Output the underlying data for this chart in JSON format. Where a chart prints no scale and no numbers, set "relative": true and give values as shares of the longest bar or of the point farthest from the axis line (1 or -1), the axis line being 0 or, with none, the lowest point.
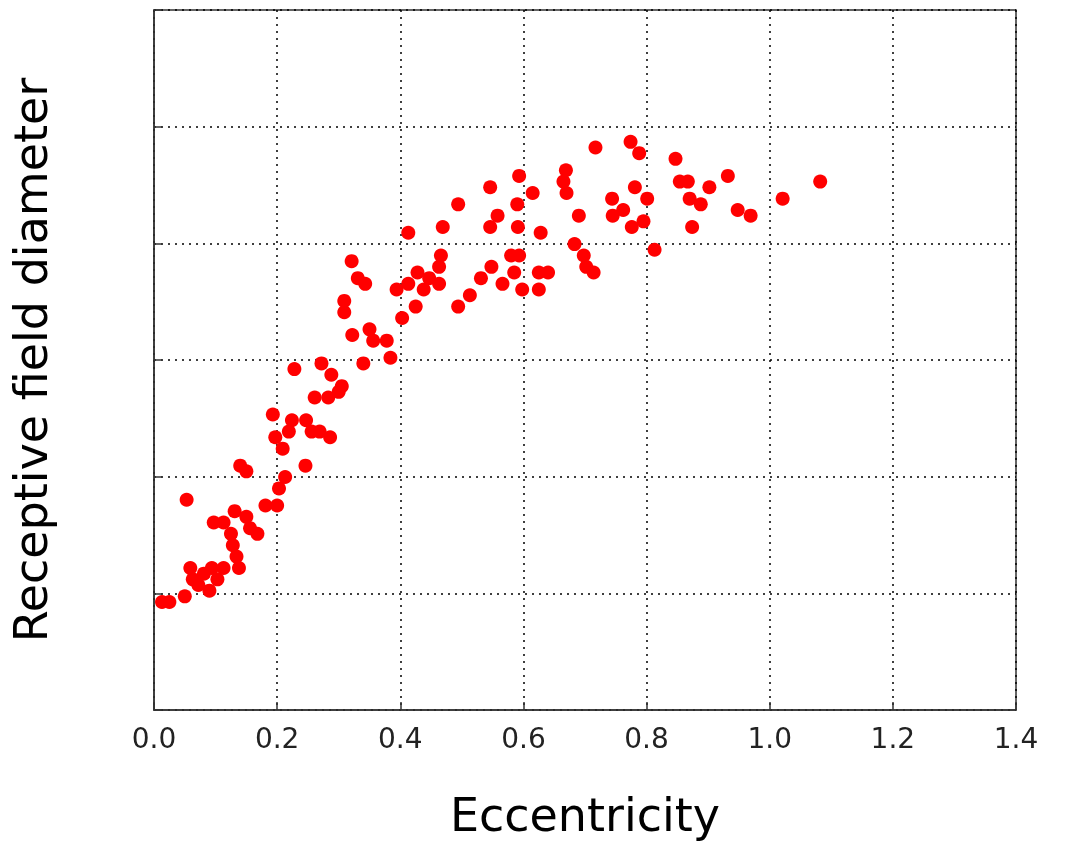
{
  "chart_data": {
    "type": "scatter",
    "xlabel": "Eccentricity",
    "ylabel": "Receptive field diameter",
    "relative": true,
    "color": "#ff0000",
    "marker": "circle",
    "grid": true,
    "tick_labels": "x",
    "xlim": [
      0,
      1.4
    ],
    "xticks": [
      {
        "value": 0,
        "label": "0.0"
      },
      {
        "value": 0.2,
        "label": "0.2"
      },
      {
        "value": 0.4,
        "label": "0.4"
      },
      {
        "value": 0.6,
        "label": "0.6"
      },
      {
        "value": 0.8,
        "label": "0.8"
      },
      {
        "value": 1,
        "label": "1.0"
      },
      {
        "value": 1.2,
        "label": "1.2"
      },
      {
        "value": 1.4,
        "label": "1.4"
      }
    ],
    "x": [
      0.013,
      0.025,
      0.05,
      0.053,
      0.059,
      0.063,
      0.072,
      0.081,
      0.09,
      0.094,
      0.103,
      0.113,
      0.097,
      0.113,
      0.125,
      0.131,
      0.128,
      0.134,
      0.138,
      0.14,
      0.15,
      0.15,
      0.156,
      0.168,
      0.181,
      0.2,
      0.203,
      0.213,
      0.193,
      0.197,
      0.209,
      0.219,
      0.228,
      0.224,
      0.247,
      0.256,
      0.269,
      0.286,
      0.246,
      0.261,
      0.283,
      0.3,
      0.305,
      0.272,
      0.288,
      0.322,
      0.34,
      0.321,
      0.331,
      0.343,
      0.309,
      0.309,
      0.35,
      0.356,
      0.378,
      0.384,
      0.394,
      0.403,
      0.413,
      0.425,
      0.428,
      0.438,
      0.447,
      0.413,
      0.469,
      0.466,
      0.463,
      0.463,
      0.494,
      0.494,
      0.513,
      0.531,
      0.546,
      0.546,
      0.548,
      0.558,
      0.566,
      0.58,
      0.585,
      0.593,
      0.59,
      0.591,
      0.593,
      0.598,
      0.615,
      0.628,
      0.625,
      0.64,
      0.625,
      0.665,
      0.67,
      0.669,
      0.683,
      0.69,
      0.698,
      0.702,
      0.714,
      0.717,
      0.744,
      0.745,
      0.762,
      0.776,
      0.774,
      0.781,
      0.788,
      0.795,
      0.801,
      0.813,
      0.847,
      0.854,
      0.867,
      0.87,
      0.874,
      0.888,
      0.902,
      0.932,
      0.948,
      0.969,
      1.021,
      1.082
    ],
    "values": [
      0.19,
      0.19,
      0.2,
      0.37,
      0.25,
      0.23,
      0.22,
      0.24,
      0.21,
      0.25,
      0.23,
      0.25,
      0.33,
      0.33,
      0.31,
      0.35,
      0.29,
      0.27,
      0.25,
      0.43,
      0.42,
      0.34,
      0.32,
      0.31,
      0.36,
      0.36,
      0.39,
      0.41,
      0.52,
      0.48,
      0.46,
      0.49,
      0.6,
      0.51,
      0.51,
      0.49,
      0.49,
      0.48,
      0.43,
      0.55,
      0.55,
      0.56,
      0.57,
      0.61,
      0.59,
      0.66,
      0.61,
      0.79,
      0.76,
      0.75,
      0.72,
      0.7,
      0.67,
      0.65,
      0.65,
      0.62,
      0.74,
      0.69,
      0.75,
      0.71,
      0.77,
      0.74,
      0.76,
      0.84,
      0.85,
      0.8,
      0.78,
      0.75,
      0.89,
      0.71,
      0.73,
      0.76,
      0.92,
      0.85,
      0.78,
      0.87,
      0.75,
      0.8,
      0.77,
      0.94,
      0.89,
      0.85,
      0.8,
      0.74,
      0.91,
      0.84,
      0.77,
      0.77,
      0.74,
      0.93,
      0.91,
      0.95,
      0.82,
      0.87,
      0.8,
      0.78,
      0.77,
      0.99,
      0.9,
      0.87,
      0.88,
      0.85,
      1,
      0.92,
      0.98,
      0.86,
      0.9,
      0.81,
      0.97,
      0.93,
      0.93,
      0.9,
      0.85,
      0.89,
      0.92,
      0.94,
      0.88,
      0.87,
      0.9,
      0.93
    ]
  }
}
